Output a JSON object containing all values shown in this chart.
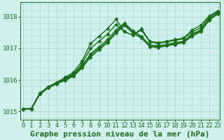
{
  "xlabel": "Graphe pression niveau de la mer (hPa)",
  "ylim": [
    1014.75,
    1018.45
  ],
  "xlim": [
    -0.3,
    23.3
  ],
  "xticks": [
    0,
    1,
    2,
    3,
    4,
    5,
    6,
    7,
    8,
    9,
    10,
    11,
    12,
    13,
    14,
    15,
    16,
    17,
    18,
    19,
    20,
    21,
    22,
    23
  ],
  "yticks": [
    1015,
    1016,
    1017,
    1018
  ],
  "background_color": "#cff0ec",
  "grid_color": "#a8ddd8",
  "line_color": "#1a6e1a",
  "lines": [
    [
      1015.08,
      1015.08,
      1015.55,
      1015.75,
      1015.88,
      1015.98,
      1016.12,
      1016.38,
      1016.72,
      1016.95,
      1017.18,
      1017.48,
      1017.72,
      1017.48,
      1017.32,
      1017.05,
      1017.02,
      1017.08,
      1017.12,
      1017.18,
      1017.38,
      1017.52,
      1017.88,
      1018.08
    ],
    [
      1015.08,
      1015.08,
      1015.55,
      1015.75,
      1015.88,
      1016.0,
      1016.14,
      1016.42,
      1016.78,
      1017.0,
      1017.22,
      1017.52,
      1017.76,
      1017.52,
      1017.36,
      1017.08,
      1017.05,
      1017.1,
      1017.15,
      1017.2,
      1017.42,
      1017.55,
      1017.9,
      1018.1
    ],
    [
      1015.08,
      1015.08,
      1015.55,
      1015.75,
      1015.9,
      1016.02,
      1016.18,
      1016.45,
      1016.82,
      1017.05,
      1017.28,
      1017.58,
      1017.8,
      1017.55,
      1017.38,
      1017.1,
      1017.08,
      1017.12,
      1017.18,
      1017.22,
      1017.45,
      1017.58,
      1017.92,
      1018.12
    ],
    [
      1015.08,
      1015.1,
      1015.58,
      1015.78,
      1015.92,
      1016.05,
      1016.2,
      1016.52,
      1017.0,
      1017.22,
      1017.45,
      1017.75,
      1017.52,
      1017.42,
      1017.58,
      1017.2,
      1017.15,
      1017.2,
      1017.25,
      1017.3,
      1017.52,
      1017.65,
      1017.98,
      1018.15
    ],
    [
      1015.08,
      1015.1,
      1015.58,
      1015.78,
      1015.92,
      1016.08,
      1016.25,
      1016.6,
      1017.15,
      1017.38,
      1017.62,
      1017.92,
      1017.52,
      1017.42,
      1017.62,
      1017.22,
      1017.18,
      1017.22,
      1017.28,
      1017.32,
      1017.58,
      1017.72,
      1018.02,
      1018.18
    ]
  ],
  "marker": "D",
  "markersize": 2.5,
  "linewidth": 1.0,
  "font_family": "monospace",
  "xlabel_fontsize": 8,
  "xlabel_fontweight": "bold",
  "tick_color": "#1a6e1a",
  "tick_fontsize": 6.5
}
